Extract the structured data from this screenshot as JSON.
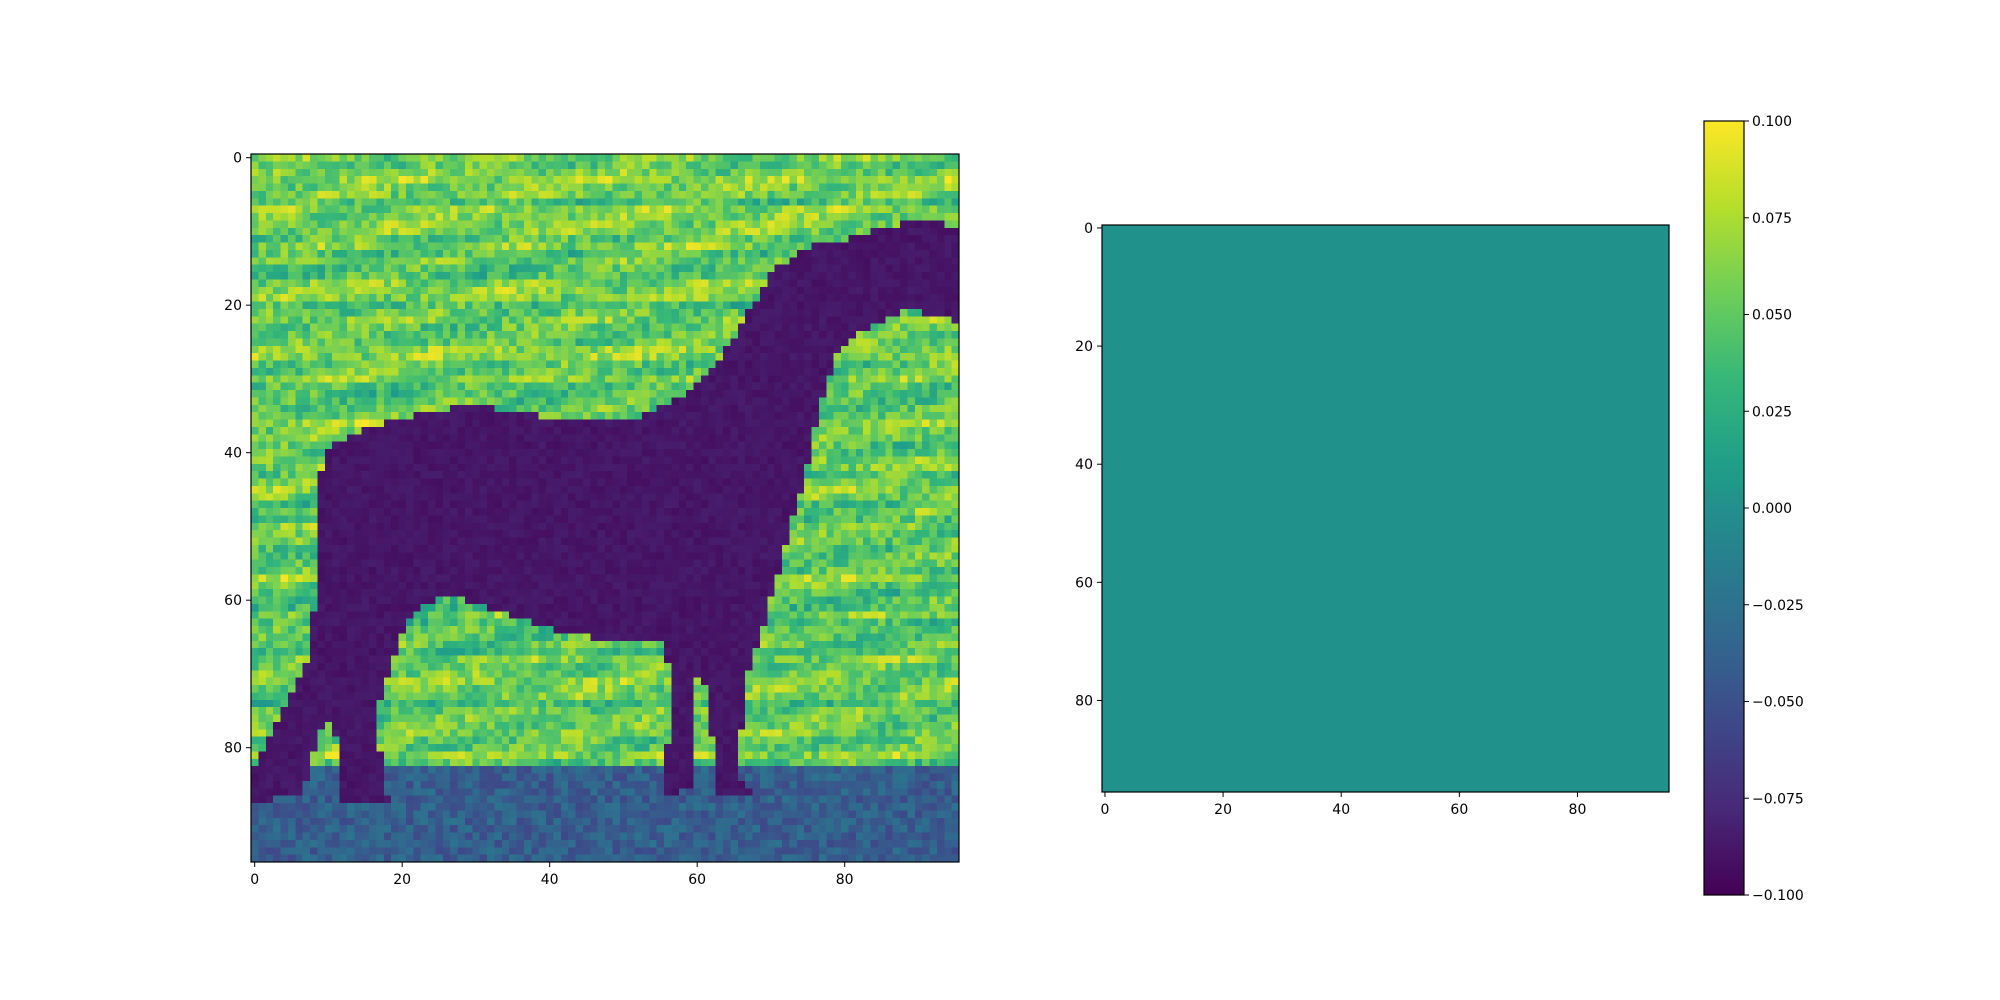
{
  "chart_data": [
    {
      "type": "heatmap",
      "title": "",
      "xlabel": "",
      "ylabel": "",
      "xlim": [
        -0.5,
        95.5
      ],
      "ylim": [
        95.5,
        -0.5
      ],
      "x_ticks": [
        0,
        20,
        40,
        60,
        80
      ],
      "y_ticks": [
        0,
        20,
        40,
        60,
        80
      ],
      "image_size": [
        96,
        96
      ],
      "colormap": "viridis",
      "content": "grayscale photo of a horse silhouette"
    },
    {
      "type": "heatmap",
      "title": "",
      "xlabel": "",
      "ylabel": "",
      "xlim": [
        -0.5,
        95.5
      ],
      "ylim": [
        95.5,
        -0.5
      ],
      "x_ticks": [
        0,
        20,
        40,
        60,
        80
      ],
      "y_ticks": [
        0,
        20,
        40,
        60,
        80
      ],
      "image_size": [
        96,
        96
      ],
      "uniform_value": 0.0,
      "fill_color": "#21918c",
      "colormap": "viridis"
    }
  ],
  "colorbar": {
    "vmin": -0.1,
    "vmax": 0.1,
    "ticks": [
      0.1,
      0.075,
      0.05,
      0.025,
      0.0,
      -0.025,
      -0.05,
      -0.075,
      -0.1
    ],
    "tick_labels": [
      "0.100",
      "0.075",
      "0.050",
      "0.025",
      "0.000",
      "−0.025",
      "−0.050",
      "−0.075",
      "−0.100"
    ]
  },
  "colors": {
    "viridis_stops": [
      "#440154",
      "#482878",
      "#3e4989",
      "#31688e",
      "#26828e",
      "#1f9e89",
      "#35b779",
      "#6ece58",
      "#b5de2b",
      "#fde725"
    ]
  }
}
